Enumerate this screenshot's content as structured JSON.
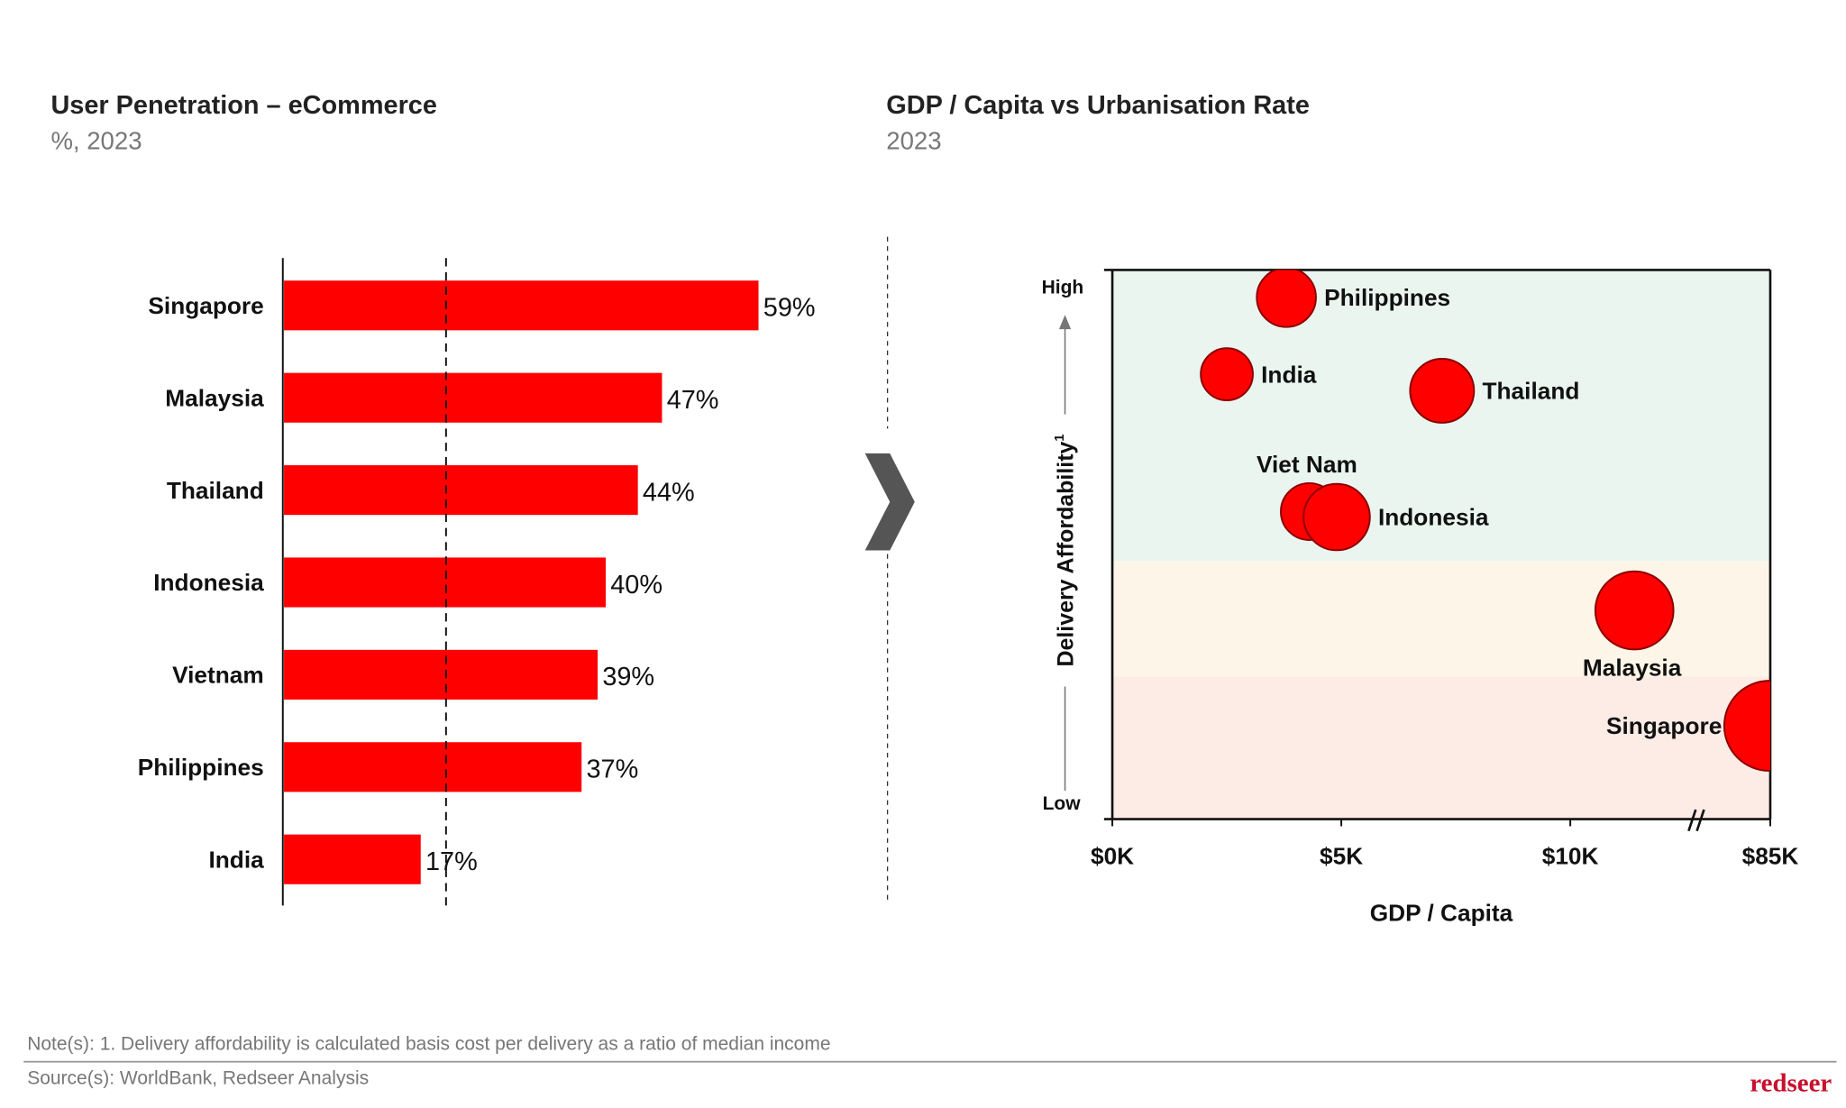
{
  "chart_data": [
    {
      "type": "bar",
      "orientation": "horizontal",
      "title": "User Penetration – eCommerce",
      "subtitle": "%, 2023",
      "categories": [
        "Singapore",
        "Malaysia",
        "Thailand",
        "Indonesia",
        "Vietnam",
        "Philippines",
        "India"
      ],
      "values": [
        59,
        47,
        44,
        40,
        39,
        37,
        17
      ],
      "value_labels": [
        "59%",
        "47%",
        "44%",
        "40%",
        "39%",
        "37%",
        "17%"
      ],
      "reference_line": 20,
      "bar_color": "#ff0000",
      "xlim": [
        0,
        70
      ],
      "grid": false
    },
    {
      "type": "scatter",
      "title": "GDP / Capita vs Urbanisation Rate",
      "subtitle": "2023",
      "xlabel": "GDP / Capita",
      "ylabel": "Delivery Affordability",
      "ylabel_superscript": "1",
      "y_high_label": "High",
      "y_low_label": "Low",
      "x_ticks": [
        {
          "value": 0,
          "label": "$0K"
        },
        {
          "value": 5,
          "label": "$5K"
        },
        {
          "value": 10,
          "label": "$10K"
        },
        {
          "value": 85,
          "label": "$85K"
        }
      ],
      "x_axis_break": true,
      "ylim": [
        0,
        1
      ],
      "bubble_color": "#ff0000",
      "bubble_stroke": "#8b0000",
      "bands": [
        {
          "from": 0.47,
          "to": 1,
          "color": "#eaf5f0"
        },
        {
          "from": 0.26,
          "to": 0.47,
          "color": "#fdf6e8"
        },
        {
          "from": 0,
          "to": 0.26,
          "color": "#fdebe6"
        }
      ],
      "points": [
        {
          "name": "Philippines",
          "x": 3.8,
          "y": 0.95,
          "size": 25,
          "label_pos": "right"
        },
        {
          "name": "India",
          "x": 2.5,
          "y": 0.81,
          "size": 22,
          "label_pos": "right"
        },
        {
          "name": "Thailand",
          "x": 7.2,
          "y": 0.78,
          "size": 27,
          "label_pos": "right"
        },
        {
          "name": "Viet Nam",
          "x": 4.3,
          "y": 0.56,
          "size": 24,
          "label_pos": "top"
        },
        {
          "name": "Indonesia",
          "x": 4.9,
          "y": 0.55,
          "size": 28,
          "label_pos": "right"
        },
        {
          "name": "Malaysia",
          "x": 11.4,
          "y": 0.38,
          "size": 33,
          "label_pos": "bottom"
        },
        {
          "name": "Singapore",
          "x": 84,
          "y": 0.17,
          "size": 38,
          "label_pos": "left"
        }
      ]
    }
  ],
  "footer": {
    "note": "Note(s): 1. Delivery affordability is calculated basis cost per delivery as a ratio of median income",
    "source": "Source(s): WorldBank, Redseer Analysis",
    "logo": "redseer"
  }
}
